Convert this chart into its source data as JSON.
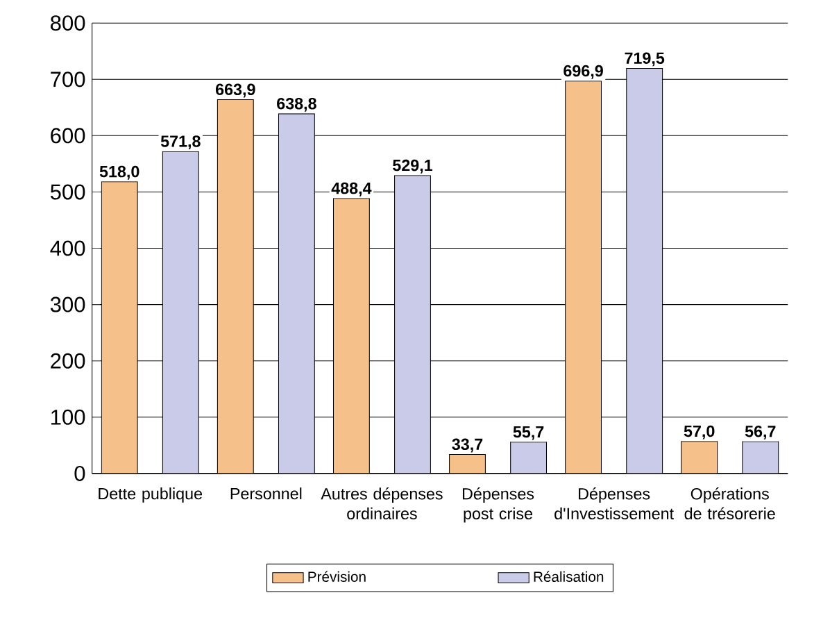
{
  "chart_data": {
    "type": "bar",
    "categories": [
      "Dette publique",
      "Personnel",
      "Autres dépenses ordinaires",
      "Dépenses post crise",
      "Dépenses d'Investissement",
      "Opérations de trésorerie"
    ],
    "series": [
      {
        "name": "Prévision",
        "color": "#f5c08a",
        "values": [
          518.0,
          663.9,
          488.4,
          33.7,
          696.9,
          57.0
        ],
        "value_labels": [
          "518,0",
          "663,9",
          "488,4",
          "33,7",
          "696,9",
          "57,0"
        ]
      },
      {
        "name": "Réalisation",
        "color": "#c9cbe8",
        "values": [
          571.8,
          638.8,
          529.1,
          55.7,
          719.5,
          56.7
        ],
        "value_labels": [
          "571,8",
          "638,8",
          "529,1",
          "55,7",
          "719,5",
          "56,7"
        ]
      }
    ],
    "ylim": [
      0,
      800
    ],
    "yticks": [
      0,
      100,
      200,
      300,
      400,
      500,
      600,
      700,
      800
    ],
    "grid": "y",
    "legend": "bottom"
  }
}
